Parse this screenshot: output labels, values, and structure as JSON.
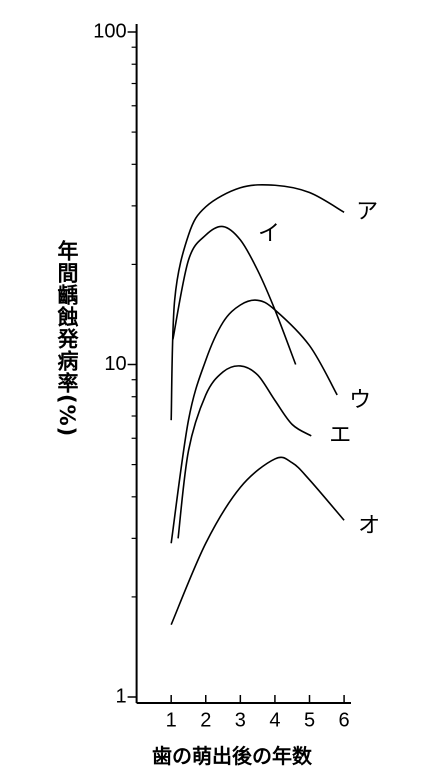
{
  "chart_data": {
    "type": "line",
    "log_y": true,
    "x_label": "歯の萌出後の年数",
    "y_label": "年間齲蝕発病率(%)",
    "xlim": [
      0,
      6.2
    ],
    "xticks": [
      1,
      2,
      3,
      4,
      5,
      6
    ],
    "ylim": [
      1,
      100
    ],
    "yticks": [
      1,
      10,
      100
    ],
    "yminorticks": [
      2,
      3,
      4,
      5,
      6,
      7,
      8,
      9,
      20,
      30,
      40,
      50,
      60,
      70,
      80,
      90
    ],
    "series": [
      {
        "name": "ア",
        "color": "#000000",
        "x": [
          1,
          1.1,
          1.5,
          2,
          3,
          4,
          5,
          6
        ],
        "values": [
          6.8,
          15.6,
          24.5,
          29.8,
          34,
          34.6,
          32.9,
          28.7
        ]
      },
      {
        "name": "イ",
        "color": "#000000",
        "x": [
          1.05,
          1.5,
          2,
          2.5,
          3,
          3.5,
          4,
          4.6
        ],
        "values": [
          11.9,
          20.6,
          24.5,
          26,
          23.7,
          19.2,
          14.6,
          10
        ]
      },
      {
        "name": "ウ",
        "color": "#000000",
        "x": [
          1,
          1.5,
          2,
          2.5,
          3,
          3.5,
          4,
          5,
          5.8
        ],
        "values": [
          2.9,
          6.8,
          10.3,
          13.4,
          15.1,
          15.6,
          14.6,
          11.4,
          8.1
        ]
      },
      {
        "name": "エ",
        "color": "#000000",
        "x": [
          1.2,
          1.5,
          2,
          2.5,
          3,
          3.5,
          4,
          4.5,
          5.05
        ],
        "values": [
          3.0,
          5.5,
          8.1,
          9.5,
          9.9,
          9.3,
          7.8,
          6.6,
          6.1
        ]
      },
      {
        "name": "オ",
        "color": "#000000",
        "x": [
          1,
          2,
          3,
          4,
          4.5,
          5,
          6
        ],
        "values": [
          1.65,
          2.9,
          4.27,
          5.2,
          5.06,
          4.5,
          3.4
        ]
      }
    ]
  }
}
